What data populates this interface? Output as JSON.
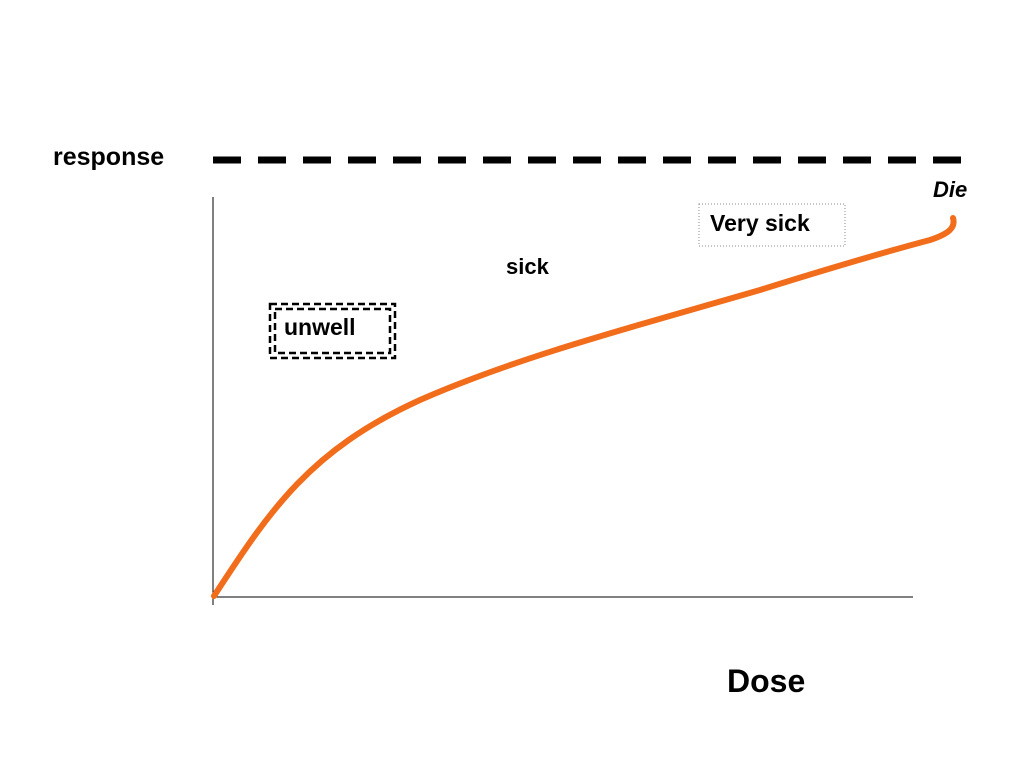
{
  "labels": {
    "response": "response",
    "die": "Die",
    "very_sick": "Very sick",
    "sick": "sick",
    "unwell": "unwell",
    "dose": "Dose"
  },
  "colors": {
    "curve": "#f26d1b",
    "axis": "#000000",
    "dashed_line": "#000000",
    "text": "#000000"
  }
}
